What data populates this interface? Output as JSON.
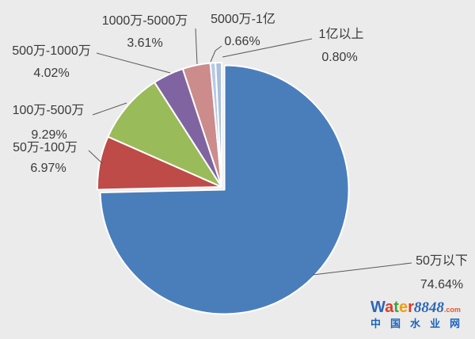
{
  "chart_data": {
    "type": "pie",
    "title": "",
    "legend_position": "none",
    "label_style": "outside-with-leader-lines",
    "start_angle_deg": 0,
    "direction": "clockwise",
    "slices": [
      {
        "label": "50万以下",
        "value": 74.64,
        "pct_label": "74.64%",
        "color": "#4A7EBB"
      },
      {
        "label": "50万-100万",
        "value": 6.97,
        "pct_label": "6.97%",
        "color": "#BE4B48"
      },
      {
        "label": "100万-500万",
        "value": 9.29,
        "pct_label": "9.29%",
        "color": "#9ABB59"
      },
      {
        "label": "500万-1000万",
        "value": 4.02,
        "pct_label": "4.02%",
        "color": "#8064A2"
      },
      {
        "label": "1000万-5000万",
        "value": 3.61,
        "pct_label": "3.61%",
        "color": "#CB8C8B"
      },
      {
        "label": "5000万-1亿",
        "value": 0.66,
        "pct_label": "0.66%",
        "color": "#B7C9E5"
      },
      {
        "label": "1亿以上",
        "value": 0.8,
        "pct_label": "0.80%",
        "color": "#A9C0DE"
      }
    ]
  },
  "style": {
    "background": "#EBEBEB",
    "slice_border_color": "#FFFFFF",
    "leader_line_color": "#595959",
    "label_text_color": "#3A3A3A"
  },
  "watermark": {
    "logo_letters": [
      {
        "t": "W",
        "c": "#2B66B8"
      },
      {
        "t": "a",
        "c": "#DC3C2A"
      },
      {
        "t": "t",
        "c": "#3DA43C"
      },
      {
        "t": "e",
        "c": "#F59C0B"
      },
      {
        "t": "r",
        "c": "#DC3C2A"
      }
    ],
    "logo_number": "8848",
    "logo_number_color": "#2B66B8",
    "logo_tld": ".com",
    "logo_tld_color": "#E2552B",
    "subtitle": "中国水业网",
    "subtitle_color": "#1C63BC"
  }
}
